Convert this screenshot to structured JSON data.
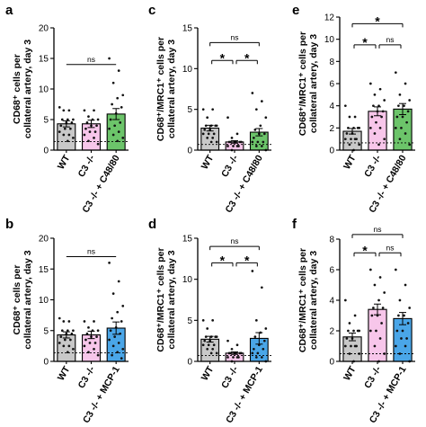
{
  "panels": [
    {
      "letter": "a"
    },
    {
      "letter": "b"
    },
    {
      "letter": "c"
    },
    {
      "letter": "d"
    },
    {
      "letter": "e"
    },
    {
      "letter": "f"
    }
  ],
  "colors": {
    "wt": "#c8c8c8",
    "c3": "#f7c6ea",
    "c48": "#6cc46a",
    "mcp1": "#4aa6e8",
    "dots": "#111111"
  },
  "chart_data": [
    {
      "panel": "a",
      "type": "bar",
      "ylabel": "CD68⁺ cells per collateral artery, day 3",
      "categories": [
        "WT",
        "C3 -/-",
        "C3 -/- + C48/80"
      ],
      "ylim": [
        0,
        20
      ],
      "yticks": [
        0,
        5,
        10,
        15,
        20
      ],
      "values": [
        4.3,
        4.3,
        5.9
      ],
      "errors": [
        0.5,
        0.6,
        0.9
      ],
      "baseline": 1.4,
      "points": [
        [
          7,
          6.5,
          6.5,
          5,
          5,
          5,
          4.5,
          4.5,
          4,
          3.5,
          3.5,
          3,
          2.5,
          2.5,
          2,
          1.5
        ],
        [
          6.5,
          6.5,
          5.5,
          5,
          5,
          4.5,
          4,
          4,
          3.5,
          3,
          3,
          2.5,
          2,
          1.5,
          1
        ],
        [
          15,
          13,
          11,
          9,
          8.5,
          7.5,
          7,
          6,
          5,
          4.5,
          4,
          3.5,
          3,
          2.5,
          2,
          1.5
        ]
      ],
      "comparisons": [
        {
          "from": 0,
          "to": 2,
          "label": "ns",
          "y": 14
        }
      ]
    },
    {
      "panel": "b",
      "type": "bar",
      "ylabel": "CD68⁺ cells per collateral artery, day 3",
      "categories": [
        "WT",
        "C3 -/-",
        "C3 -/- + MCP-1"
      ],
      "ylim": [
        0,
        20
      ],
      "yticks": [
        0,
        5,
        10,
        15,
        20
      ],
      "values": [
        4.3,
        4.3,
        5.4
      ],
      "errors": [
        0.5,
        0.6,
        1.0
      ],
      "baseline": 1.4,
      "points": [
        [
          7,
          6.5,
          6.5,
          5,
          5,
          5,
          4.5,
          4.5,
          4,
          3.5,
          3.5,
          3,
          2.5,
          2.5,
          2,
          1.5
        ],
        [
          6.5,
          6.5,
          5.5,
          5,
          5,
          4.5,
          4,
          4,
          3.5,
          3,
          3,
          2.5,
          2,
          1.5,
          1
        ],
        [
          16,
          13,
          11,
          9,
          8,
          7,
          6.5,
          5.5,
          5,
          4.5,
          4,
          3.5,
          3,
          2.5,
          2,
          1.5,
          1,
          0.5
        ]
      ],
      "comparisons": [
        {
          "from": 0,
          "to": 2,
          "label": "ns",
          "y": 17
        }
      ]
    },
    {
      "panel": "c",
      "type": "bar",
      "ylabel": "CD68⁺/MRC1⁺ cells per collateral artery, day 3",
      "categories": [
        "WT",
        "C3 -/-",
        "C3 -/- + C48/80"
      ],
      "ylim": [
        0,
        15
      ],
      "yticks": [
        0,
        5,
        10,
        15
      ],
      "values": [
        2.7,
        1.0,
        2.2
      ],
      "errors": [
        0.35,
        0.15,
        0.45
      ],
      "baseline": 0.7,
      "points": [
        [
          5,
          5,
          4,
          3,
          3,
          3,
          3,
          2.5,
          2.5,
          2,
          2,
          2,
          1.5,
          1.5,
          1,
          1
        ],
        [
          4,
          2,
          1.5,
          1,
          1,
          1,
          1,
          1,
          1,
          0.5,
          0.5,
          0.5,
          0.5,
          0
        ],
        [
          7,
          6,
          5,
          4,
          3,
          2.5,
          2,
          2,
          1.5,
          1,
          1,
          1,
          0.5,
          0.5,
          0
        ]
      ],
      "comparisons": [
        {
          "from": 0,
          "to": 2,
          "label": "ns",
          "y": 13.2
        },
        {
          "from": 0,
          "to": 1,
          "label": "*",
          "y": 11
        },
        {
          "from": 1,
          "to": 2,
          "label": "*",
          "y": 11
        }
      ]
    },
    {
      "panel": "d",
      "type": "bar",
      "ylabel": "CD68⁺/MRC1⁺ cells per collateral artery, day 3",
      "categories": [
        "WT",
        "C3 -/-",
        "C3 -/- + MCP-1"
      ],
      "ylim": [
        0,
        15
      ],
      "yticks": [
        0,
        5,
        10,
        15
      ],
      "values": [
        2.7,
        1.0,
        2.8
      ],
      "errors": [
        0.35,
        0.15,
        0.7
      ],
      "baseline": 0.7,
      "points": [
        [
          5,
          5,
          4,
          3,
          3,
          3,
          3,
          2.5,
          2.5,
          2,
          2,
          2,
          1.5,
          1.5,
          1,
          1
        ],
        [
          2.5,
          2,
          1.5,
          1,
          1,
          1,
          1,
          1,
          1,
          0.5,
          0.5,
          0.5,
          0.5,
          0
        ],
        [
          11,
          9,
          5,
          4,
          3.5,
          3,
          2.5,
          2,
          1.5,
          1.5,
          1,
          1,
          0.5,
          0.5,
          0
        ]
      ],
      "comparisons": [
        {
          "from": 0,
          "to": 2,
          "label": "ns",
          "y": 14
        },
        {
          "from": 0,
          "to": 1,
          "label": "*",
          "y": 12
        },
        {
          "from": 1,
          "to": 2,
          "label": "*",
          "y": 12
        }
      ]
    },
    {
      "panel": "e",
      "type": "bar",
      "ylabel": "CD68⁺/MRC1⁺ cells per collateral artery, day 3",
      "categories": [
        "WT",
        "C3 -/-",
        "C3 -/- + C48/80"
      ],
      "ylim": [
        0,
        12
      ],
      "yticks": [
        0,
        2,
        4,
        6,
        8,
        10,
        12
      ],
      "values": [
        1.7,
        3.5,
        3.7
      ],
      "errors": [
        0.25,
        0.4,
        0.5
      ],
      "baseline": 0.65,
      "points": [
        [
          4,
          3,
          3,
          2,
          2,
          2,
          2,
          1.5,
          1.5,
          1,
          1,
          1,
          1,
          0.5,
          0.5,
          0
        ],
        [
          6,
          5.5,
          5,
          4.5,
          4,
          4,
          3.5,
          3.5,
          3,
          3,
          2.5,
          2,
          2,
          1.5,
          1,
          0.5
        ],
        [
          7,
          6,
          5,
          4.5,
          4,
          4,
          3.5,
          3,
          3,
          2.5,
          2,
          2,
          1.5,
          1,
          0.5
        ]
      ],
      "comparisons": [
        {
          "from": 0,
          "to": 2,
          "label": "*",
          "y": 11.4
        },
        {
          "from": 0,
          "to": 1,
          "label": "*",
          "y": 9.5
        },
        {
          "from": 1,
          "to": 2,
          "label": "ns",
          "y": 9.5
        }
      ]
    },
    {
      "panel": "f",
      "type": "bar",
      "ylabel": "CD68⁺/MRC1⁺ cells per collateral artery, day 3",
      "categories": [
        "WT",
        "C3 -/-",
        "C3 -/- + MCP-1"
      ],
      "ylim": [
        0,
        8
      ],
      "yticks": [
        0,
        2,
        4,
        6,
        8
      ],
      "values": [
        1.6,
        3.4,
        2.8
      ],
      "errors": [
        0.25,
        0.35,
        0.4
      ],
      "baseline": 0.5,
      "points": [
        [
          4,
          3,
          2.5,
          2,
          2,
          2,
          2,
          1.5,
          1.5,
          1,
          1,
          1,
          1,
          0.5,
          0.5,
          0
        ],
        [
          6,
          5.5,
          5,
          4.5,
          4,
          3.5,
          3.5,
          3,
          3,
          2.5,
          2,
          2,
          1.5,
          1,
          0.5,
          0
        ],
        [
          6,
          5,
          4,
          3.5,
          3,
          3,
          2.5,
          2,
          2,
          1.5,
          1.5,
          1,
          1,
          0.5,
          0
        ]
      ],
      "comparisons": [
        {
          "from": 0,
          "to": 2,
          "label": "ns",
          "y": 8.3
        },
        {
          "from": 0,
          "to": 1,
          "label": "*",
          "y": 7.1
        },
        {
          "from": 1,
          "to": 2,
          "label": "ns",
          "y": 7.1
        }
      ]
    }
  ]
}
